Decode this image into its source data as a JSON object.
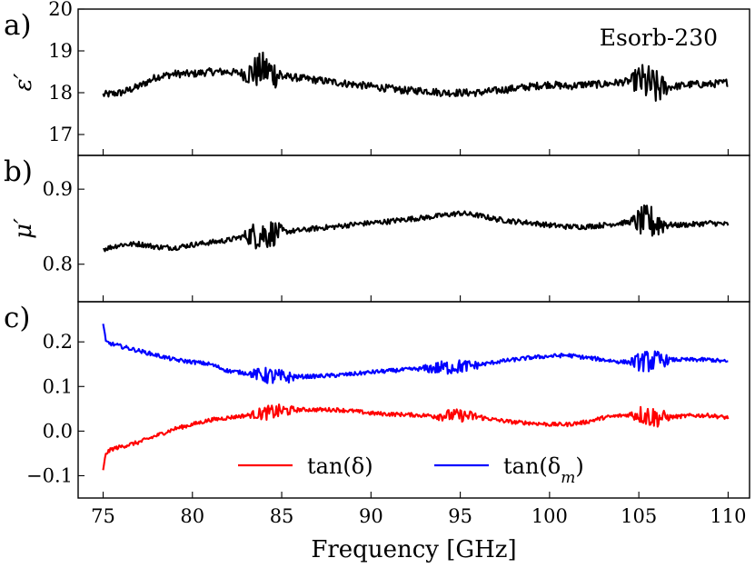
{
  "chart_data": [
    {
      "type": "line",
      "panel_label": "a)",
      "annotation": "Esorb-230",
      "ylabel": "ε′",
      "xlabel": "",
      "xlim": [
        73.6,
        111.2
      ],
      "ylim": [
        16.5,
        20
      ],
      "yticks": [
        17,
        18,
        19,
        20
      ],
      "ytick_labels": [
        "17",
        "18",
        "19",
        "20"
      ],
      "grid": false,
      "series": [
        {
          "name": "epsilon_prime",
          "color": "#000000",
          "noise": 0.09,
          "x": [
            75,
            76,
            77,
            78,
            79,
            80,
            81,
            82,
            83,
            84,
            85,
            86,
            87,
            88,
            89,
            90,
            91,
            92,
            93,
            94,
            95,
            96,
            97,
            98,
            99,
            100,
            101,
            102,
            103,
            104,
            105,
            106,
            107,
            108,
            109,
            110
          ],
          "y": [
            17.95,
            18.0,
            18.15,
            18.38,
            18.45,
            18.45,
            18.5,
            18.5,
            18.45,
            18.55,
            18.4,
            18.35,
            18.3,
            18.25,
            18.2,
            18.15,
            18.1,
            18.05,
            18.05,
            18.0,
            18.0,
            18.0,
            18.05,
            18.1,
            18.15,
            18.2,
            18.15,
            18.2,
            18.2,
            18.25,
            18.3,
            18.1,
            18.15,
            18.2,
            18.2,
            18.25
          ],
          "bursts": [
            {
              "x": 84.0,
              "width": 1.3,
              "amp": 0.35
            },
            {
              "x": 105.6,
              "width": 1.1,
              "amp": 0.4
            }
          ]
        }
      ]
    },
    {
      "type": "line",
      "panel_label": "b)",
      "ylabel": "μ′",
      "xlabel": "",
      "xlim": [
        73.6,
        111.2
      ],
      "ylim": [
        0.75,
        0.945
      ],
      "yticks": [
        0.8,
        0.9
      ],
      "ytick_labels": [
        "0.8",
        "0.9"
      ],
      "grid": false,
      "series": [
        {
          "name": "mu_prime",
          "color": "#000000",
          "noise": 0.0035,
          "x": [
            75,
            76,
            77,
            78,
            79,
            80,
            81,
            82,
            83,
            84,
            85,
            86,
            87,
            88,
            89,
            90,
            91,
            92,
            93,
            94,
            95,
            96,
            97,
            98,
            99,
            100,
            101,
            102,
            103,
            104,
            105,
            106,
            107,
            108,
            109,
            110
          ],
          "y": [
            0.82,
            0.826,
            0.827,
            0.823,
            0.822,
            0.826,
            0.829,
            0.832,
            0.838,
            0.84,
            0.843,
            0.845,
            0.848,
            0.85,
            0.853,
            0.855,
            0.857,
            0.86,
            0.862,
            0.865,
            0.868,
            0.865,
            0.86,
            0.857,
            0.855,
            0.852,
            0.85,
            0.85,
            0.852,
            0.855,
            0.857,
            0.855,
            0.852,
            0.853,
            0.855,
            0.853
          ],
          "bursts": [
            {
              "x": 84.0,
              "width": 1.2,
              "amp": 0.018
            },
            {
              "x": 105.6,
              "width": 1.1,
              "amp": 0.02
            }
          ]
        }
      ]
    },
    {
      "type": "line",
      "panel_label": "c)",
      "ylabel": "",
      "xlabel": "Frequency [GHz]",
      "xlim": [
        73.6,
        111.2
      ],
      "ylim": [
        -0.15,
        0.29
      ],
      "yticks": [
        -0.1,
        0.0,
        0.1,
        0.2
      ],
      "ytick_labels": [
        "−0.1",
        "0.0",
        "0.1",
        "0.2"
      ],
      "xticks": [
        75,
        80,
        85,
        90,
        95,
        100,
        105,
        110
      ],
      "xtick_labels": [
        "75",
        "80",
        "85",
        "90",
        "95",
        "100",
        "105",
        "110"
      ],
      "grid": false,
      "legend": "lower-center",
      "series": [
        {
          "name": "tan(δ)",
          "color": "#ff0000",
          "noise": 0.0045,
          "x": [
            75,
            75.15,
            75.5,
            76,
            77,
            78,
            79,
            80,
            81,
            82,
            83,
            84,
            85,
            86,
            87,
            88,
            89,
            90,
            91,
            92,
            93,
            94,
            95,
            96,
            97,
            98,
            99,
            100,
            101,
            102,
            103,
            104,
            105,
            106,
            107,
            108,
            109,
            110
          ],
          "y": [
            -0.09,
            -0.05,
            -0.04,
            -0.035,
            -0.025,
            -0.01,
            0.005,
            0.015,
            0.025,
            0.03,
            0.035,
            0.04,
            0.045,
            0.048,
            0.048,
            0.048,
            0.045,
            0.04,
            0.038,
            0.037,
            0.035,
            0.035,
            0.035,
            0.032,
            0.025,
            0.02,
            0.018,
            0.015,
            0.015,
            0.02,
            0.03,
            0.035,
            0.038,
            0.03,
            0.032,
            0.035,
            0.035,
            0.03
          ],
          "bursts": [
            {
              "x": 84.5,
              "width": 1.4,
              "amp": 0.012
            },
            {
              "x": 94.8,
              "width": 1.6,
              "amp": 0.01
            },
            {
              "x": 105.6,
              "width": 1.2,
              "amp": 0.02
            }
          ]
        },
        {
          "name": "tan(δ_m)",
          "color": "#0000ff",
          "noise": 0.0045,
          "x": [
            75,
            75.15,
            75.5,
            76,
            77,
            78,
            79,
            80,
            81,
            82,
            83,
            84,
            85,
            86,
            87,
            88,
            89,
            90,
            91,
            92,
            93,
            94,
            95,
            96,
            97,
            98,
            99,
            100,
            101,
            102,
            103,
            104,
            105,
            106,
            107,
            108,
            109,
            110
          ],
          "y": [
            0.24,
            0.2,
            0.195,
            0.19,
            0.18,
            0.17,
            0.16,
            0.155,
            0.15,
            0.135,
            0.13,
            0.125,
            0.12,
            0.122,
            0.123,
            0.125,
            0.128,
            0.132,
            0.135,
            0.138,
            0.14,
            0.142,
            0.145,
            0.148,
            0.155,
            0.16,
            0.165,
            0.168,
            0.17,
            0.165,
            0.16,
            0.155,
            0.155,
            0.158,
            0.16,
            0.16,
            0.16,
            0.155
          ],
          "bursts": [
            {
              "x": 84.5,
              "width": 1.4,
              "amp": 0.015
            },
            {
              "x": 94.5,
              "width": 1.8,
              "amp": 0.012
            },
            {
              "x": 105.6,
              "width": 1.2,
              "amp": 0.02
            }
          ]
        }
      ]
    }
  ]
}
